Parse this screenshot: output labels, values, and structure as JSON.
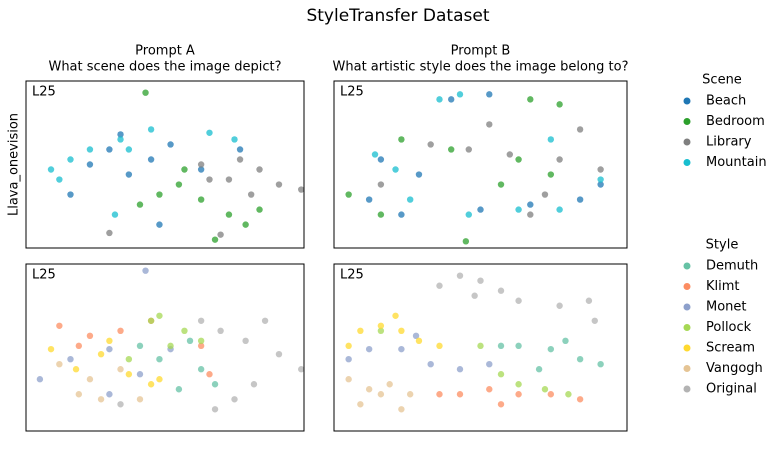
{
  "title": "StyleTransfer Dataset",
  "chart_data": [
    {
      "type": "scatter",
      "title": [
        "Prompt A",
        "What scene does the image depict?"
      ],
      "label": "L25",
      "ylabel": "Llava_onevision",
      "xlim": [
        0,
        100
      ],
      "ylim": [
        0,
        100
      ],
      "legend_title": "Scene",
      "series": [
        {
          "name": "Beach",
          "color": "#1f77b4",
          "x": [
            23,
            30,
            37,
            45,
            52,
            63,
            77,
            48,
            16,
            34
          ],
          "values": [
            50,
            59,
            44,
            53,
            62,
            47,
            59,
            14,
            32,
            68
          ]
        },
        {
          "name": "Bedroom",
          "color": "#2ca02c",
          "x": [
            43,
            48,
            55,
            63,
            73,
            84,
            41,
            57,
            79,
            68
          ],
          "values": [
            93,
            32,
            38,
            29,
            20,
            23,
            26,
            47,
            14,
            5
          ]
        },
        {
          "name": "Library",
          "color": "#7f7f7f",
          "x": [
            63,
            73,
            84,
            91,
            81,
            99,
            66,
            77,
            70,
            30
          ],
          "values": [
            50,
            41,
            47,
            38,
            32,
            35,
            41,
            53,
            8,
            9
          ]
        },
        {
          "name": "Mountain",
          "color": "#17becf",
          "x": [
            9,
            16,
            23,
            34,
            45,
            37,
            12,
            66,
            75,
            32
          ],
          "values": [
            47,
            53,
            59,
            65,
            71,
            59,
            41,
            69,
            65,
            20
          ]
        }
      ]
    },
    {
      "type": "scatter",
      "title": [
        "Prompt B",
        "What artistic style does the image belong to?"
      ],
      "label": "L25",
      "xlim": [
        0,
        100
      ],
      "ylim": [
        0,
        100
      ],
      "series": [
        {
          "color": "#1f77b4",
          "x": [
            40,
            53,
            16,
            12,
            23,
            50,
            67,
            84,
            91,
            29
          ],
          "values": [
            89,
            92,
            53,
            29,
            20,
            23,
            26,
            29,
            38,
            44
          ]
        },
        {
          "color": "#2ca02c",
          "x": [
            67,
            77,
            5,
            23,
            40,
            63,
            74,
            45,
            16,
            57
          ],
          "values": [
            89,
            86,
            32,
            65,
            59,
            53,
            44,
            4,
            20,
            38
          ]
        },
        {
          "color": "#7f7f7f",
          "x": [
            46,
            60,
            77,
            91,
            33,
            84,
            67,
            53,
            16,
            72
          ],
          "values": [
            59,
            56,
            53,
            47,
            62,
            71,
            20,
            74,
            38,
            32
          ]
        },
        {
          "color": "#17becf",
          "x": [
            36,
            43,
            14,
            21,
            46,
            63,
            77,
            74,
            26,
            91
          ],
          "values": [
            89,
            92,
            56,
            47,
            20,
            23,
            23,
            65,
            29,
            41
          ]
        }
      ]
    },
    {
      "type": "scatter",
      "label": "L25",
      "xlim": [
        0,
        100
      ],
      "ylim": [
        0,
        100
      ],
      "legend_title": "Style",
      "series": [
        {
          "name": "Demuth",
          "color": "#66c2a5",
          "x": [
            48,
            63,
            55,
            68,
            41,
            59
          ],
          "values": [
            43,
            37,
            25,
            28,
            51,
            54
          ]
        },
        {
          "name": "Klimt",
          "color": "#fc8d62",
          "x": [
            12,
            23,
            34,
            45,
            63,
            66,
            19
          ],
          "values": [
            63,
            57,
            60,
            66,
            51,
            34,
            51
          ]
        },
        {
          "name": "Monet",
          "color": "#8da0cb",
          "x": [
            5,
            16,
            30,
            41,
            52,
            43,
            30
          ],
          "values": [
            31,
            43,
            49,
            34,
            49,
            96,
            22
          ]
        },
        {
          "name": "Pollock",
          "color": "#a6d854",
          "x": [
            45,
            48,
            37,
            57,
            52,
            63
          ],
          "values": [
            66,
            69,
            43,
            60,
            51,
            54
          ]
        },
        {
          "name": "Scream",
          "color": "#ffd92f",
          "x": [
            9,
            18,
            27,
            37,
            48,
            30,
            45
          ],
          "values": [
            49,
            37,
            46,
            34,
            31,
            54,
            28
          ]
        },
        {
          "name": "Vangogh",
          "color": "#e5c494",
          "x": [
            12,
            23,
            34,
            27,
            19,
            41
          ],
          "values": [
            40,
            31,
            37,
            19,
            22,
            19
          ]
        },
        {
          "name": "Original",
          "color": "#b3b3b3",
          "x": [
            70,
            79,
            86,
            91,
            75,
            68,
            99,
            34,
            63,
            82
          ],
          "values": [
            60,
            54,
            66,
            46,
            19,
            13,
            37,
            16,
            66,
            28
          ]
        }
      ]
    },
    {
      "type": "scatter",
      "label": "L25",
      "xlim": [
        0,
        100
      ],
      "ylim": [
        0,
        100
      ],
      "series": [
        {
          "color": "#66c2a5",
          "x": [
            63,
            74,
            84,
            91,
            70,
            57,
            79
          ],
          "values": [
            51,
            49,
            43,
            40,
            37,
            51,
            54
          ]
        },
        {
          "color": "#fc8d62",
          "x": [
            43,
            53,
            63,
            74,
            84,
            57,
            36
          ],
          "values": [
            22,
            25,
            22,
            22,
            19,
            16,
            22
          ]
        },
        {
          "color": "#8da0cb",
          "x": [
            12,
            23,
            33,
            43,
            53,
            28,
            5
          ],
          "values": [
            49,
            49,
            40,
            37,
            40,
            57,
            43
          ]
        },
        {
          "color": "#a6d854",
          "x": [
            16,
            50,
            63,
            72,
            80,
            57
          ],
          "values": [
            60,
            51,
            28,
            25,
            22,
            34
          ]
        },
        {
          "color": "#ffd92f",
          "x": [
            9,
            16,
            23,
            29,
            36,
            5,
            21
          ],
          "values": [
            60,
            63,
            60,
            54,
            51,
            51,
            69
          ]
        },
        {
          "color": "#e5c494",
          "x": [
            5,
            12,
            19,
            26,
            9,
            23,
            16
          ],
          "values": [
            31,
            25,
            28,
            22,
            16,
            13,
            22
          ]
        },
        {
          "color": "#b3b3b3",
          "x": [
            36,
            43,
            50,
            57,
            63,
            77,
            87,
            48,
            89
          ],
          "values": [
            87,
            93,
            90,
            84,
            78,
            75,
            78,
            81,
            66
          ]
        }
      ]
    }
  ]
}
